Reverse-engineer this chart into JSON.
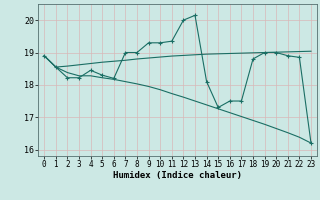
{
  "xlabel": "Humidex (Indice chaleur)",
  "bg_color": "#cce8e4",
  "grid_color": "#d8b8b8",
  "line_color": "#1a6e64",
  "xlim": [
    -0.5,
    23.5
  ],
  "ylim": [
    15.8,
    20.5
  ],
  "yticks": [
    16,
    17,
    18,
    19,
    20
  ],
  "xticks": [
    0,
    1,
    2,
    3,
    4,
    5,
    6,
    7,
    8,
    9,
    10,
    11,
    12,
    13,
    14,
    15,
    16,
    17,
    18,
    19,
    20,
    21,
    22,
    23
  ],
  "line1_x": [
    0,
    1,
    2,
    3,
    4,
    5,
    6,
    7,
    8,
    9,
    10,
    11,
    12,
    13,
    14,
    15,
    16,
    17,
    18,
    19,
    20,
    21,
    22,
    23
  ],
  "line1_y": [
    18.9,
    18.55,
    18.22,
    18.22,
    18.45,
    18.3,
    18.2,
    19.0,
    19.0,
    19.3,
    19.3,
    19.35,
    20.0,
    20.15,
    18.1,
    17.3,
    17.5,
    17.5,
    18.8,
    19.0,
    19.0,
    18.9,
    18.85,
    16.2
  ],
  "line2_x": [
    0,
    1,
    2,
    3,
    4,
    5,
    6,
    7,
    8,
    9,
    10,
    11,
    12,
    13,
    14,
    15,
    16,
    17,
    18,
    19,
    20,
    21,
    22,
    23
  ],
  "line2_y": [
    18.9,
    18.55,
    18.58,
    18.62,
    18.66,
    18.7,
    18.73,
    18.76,
    18.8,
    18.83,
    18.86,
    18.89,
    18.91,
    18.93,
    18.95,
    18.96,
    18.97,
    18.98,
    18.99,
    19.0,
    19.01,
    19.02,
    19.03,
    19.04
  ],
  "line3_x": [
    0,
    1,
    2,
    3,
    4,
    5,
    6,
    7,
    8,
    9,
    10,
    11,
    12,
    13,
    14,
    15,
    16,
    17,
    18,
    19,
    20,
    21,
    22,
    23
  ],
  "line3_y": [
    18.9,
    18.55,
    18.38,
    18.28,
    18.28,
    18.22,
    18.17,
    18.1,
    18.03,
    17.95,
    17.85,
    17.73,
    17.62,
    17.5,
    17.38,
    17.26,
    17.14,
    17.02,
    16.9,
    16.78,
    16.65,
    16.52,
    16.38,
    16.2
  ]
}
